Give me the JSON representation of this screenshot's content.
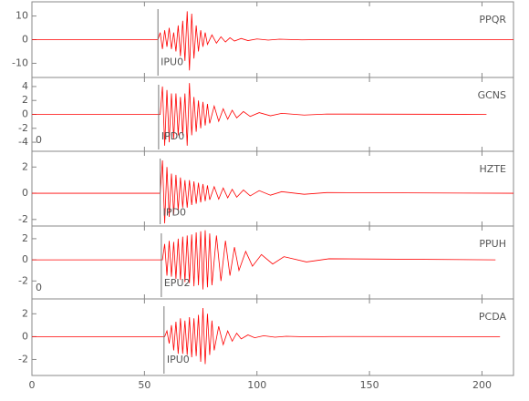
{
  "chart_data": [
    {
      "type": "line",
      "title": "PPQR",
      "pick": 56,
      "pick_label": "IPU0",
      "color": "#ff0000",
      "xlim": [
        0,
        214
      ],
      "ylim": [
        -16,
        16
      ],
      "yticks": [
        10,
        0,
        -10
      ],
      "x": [
        0,
        56,
        57,
        58,
        59,
        60,
        61,
        62,
        63,
        64,
        65,
        66,
        67,
        68,
        69,
        70,
        71,
        72,
        73,
        74,
        75,
        76,
        77,
        78,
        80,
        82,
        84,
        86,
        88,
        90,
        93,
        96,
        100,
        105,
        110,
        120,
        130,
        214
      ],
      "values": [
        0,
        0,
        3,
        -4,
        4,
        -3,
        5,
        -4,
        3,
        -5,
        6,
        -7,
        8,
        -9,
        12,
        -13,
        11,
        -8,
        6,
        -5,
        4,
        -3,
        3,
        -2,
        2,
        -1.5,
        1.2,
        -1,
        0.8,
        -0.6,
        0.5,
        -0.4,
        0.3,
        -0.2,
        0.2,
        -0.1,
        0.05,
        0
      ]
    },
    {
      "type": "line",
      "title": "GCNS",
      "pick": 56.3,
      "pick_label": "IPD0",
      "corner_label": "0",
      "color": "#ff0000",
      "xlim": [
        0,
        214
      ],
      "ylim": [
        -5.3,
        5.3
      ],
      "yticks": [
        4,
        2,
        0,
        -2,
        -4
      ],
      "x": [
        0,
        57,
        58,
        59,
        60,
        61,
        62,
        63,
        64,
        65,
        66,
        67,
        68,
        69,
        70,
        71,
        72,
        73,
        74,
        75,
        76,
        77,
        78,
        79,
        81,
        83,
        85,
        87,
        89,
        91,
        94,
        97,
        101,
        106,
        111,
        121,
        131,
        202
      ],
      "values": [
        0,
        0,
        4,
        -4.5,
        3.5,
        -4,
        3,
        -3.5,
        3,
        -3,
        2.5,
        -3,
        3,
        -4.5,
        4.5,
        -3,
        2.5,
        -2.5,
        2,
        -2,
        1.8,
        -1.6,
        1.5,
        -1.3,
        1.2,
        -1,
        0.8,
        -0.7,
        0.6,
        -0.5,
        0.4,
        -0.3,
        0.25,
        -0.2,
        0.15,
        -0.1,
        0.05,
        0
      ]
    },
    {
      "type": "line",
      "title": "HZTE",
      "pick": 57,
      "pick_label": "IPD0",
      "color": "#ff0000",
      "xlim": [
        0,
        214
      ],
      "ylim": [
        -2.5,
        3.2
      ],
      "yticks": [
        2,
        0,
        -2
      ],
      "x": [
        0,
        57,
        58,
        59,
        60,
        61,
        62,
        63,
        64,
        65,
        66,
        67,
        68,
        69,
        70,
        71,
        72,
        73,
        74,
        75,
        76,
        77,
        78,
        79,
        81,
        83,
        85,
        87,
        89,
        91,
        94,
        97,
        101,
        106,
        111,
        121,
        131,
        214
      ],
      "values": [
        0,
        0,
        2.5,
        -2.3,
        2,
        -1.8,
        1.5,
        -1.6,
        1.4,
        -1.3,
        1.2,
        -1.1,
        1.0,
        -1.1,
        1.0,
        -0.9,
        0.9,
        -0.8,
        0.8,
        -0.7,
        0.7,
        -0.6,
        0.6,
        -0.5,
        0.5,
        -0.45,
        0.4,
        -0.35,
        0.3,
        -0.3,
        0.25,
        -0.2,
        0.2,
        -0.15,
        0.12,
        -0.08,
        0.05,
        0
      ]
    },
    {
      "type": "line",
      "title": "PPUH",
      "pick": 57.5,
      "pick_label": "EPU2",
      "corner_label": "0",
      "color": "#ff0000",
      "xlim": [
        0,
        214
      ],
      "ylim": [
        -3.7,
        3.2
      ],
      "yticks": [
        2,
        0,
        -2
      ],
      "x": [
        0,
        58,
        59,
        60,
        61,
        62,
        63,
        64,
        65,
        66,
        67,
        68,
        69,
        70,
        71,
        72,
        73,
        74,
        75,
        76,
        77,
        78,
        79,
        80,
        82,
        84,
        86,
        88,
        90,
        92,
        95,
        98,
        102,
        107,
        112,
        122,
        132,
        206
      ],
      "values": [
        0,
        0,
        1.5,
        -1.5,
        1.8,
        -1.6,
        1.7,
        -1.8,
        2,
        -1.9,
        2.2,
        -2.1,
        2.3,
        -2.2,
        2.4,
        -2.5,
        2.6,
        -2.4,
        2.7,
        -2.8,
        2.8,
        -2.6,
        2.5,
        -2.4,
        2.3,
        -2,
        1.8,
        -1.5,
        1.2,
        -1,
        0.8,
        -0.6,
        0.5,
        -0.4,
        0.3,
        -0.2,
        0.1,
        0
      ]
    },
    {
      "type": "line",
      "title": "PCDA",
      "pick": 58.7,
      "pick_label": "IPU0",
      "color": "#ff0000",
      "xlim": [
        0,
        214
      ],
      "ylim": [
        -3.4,
        3.3
      ],
      "yticks": [
        2,
        0,
        -2
      ],
      "xticks": [
        0,
        50,
        100,
        150,
        200
      ],
      "x": [
        0,
        59,
        60,
        61,
        62,
        63,
        64,
        65,
        66,
        67,
        68,
        69,
        70,
        71,
        72,
        73,
        74,
        75,
        76,
        77,
        78,
        79,
        80,
        81,
        83,
        85,
        87,
        89,
        91,
        93,
        96,
        99,
        103,
        108,
        113,
        123,
        133,
        208
      ],
      "values": [
        0,
        0,
        0.5,
        -0.6,
        1,
        -1.2,
        1.3,
        -1.5,
        1.6,
        -1.5,
        1.4,
        -1.6,
        1.7,
        -1.8,
        1.6,
        -1.7,
        1.9,
        -2.2,
        2.5,
        -2.4,
        2,
        -1.6,
        1.4,
        -1.2,
        0.9,
        -0.7,
        0.5,
        -0.4,
        0.3,
        -0.2,
        0.15,
        -0.1,
        0.08,
        -0.05,
        0.03,
        -0.02,
        0.01,
        0
      ]
    }
  ]
}
